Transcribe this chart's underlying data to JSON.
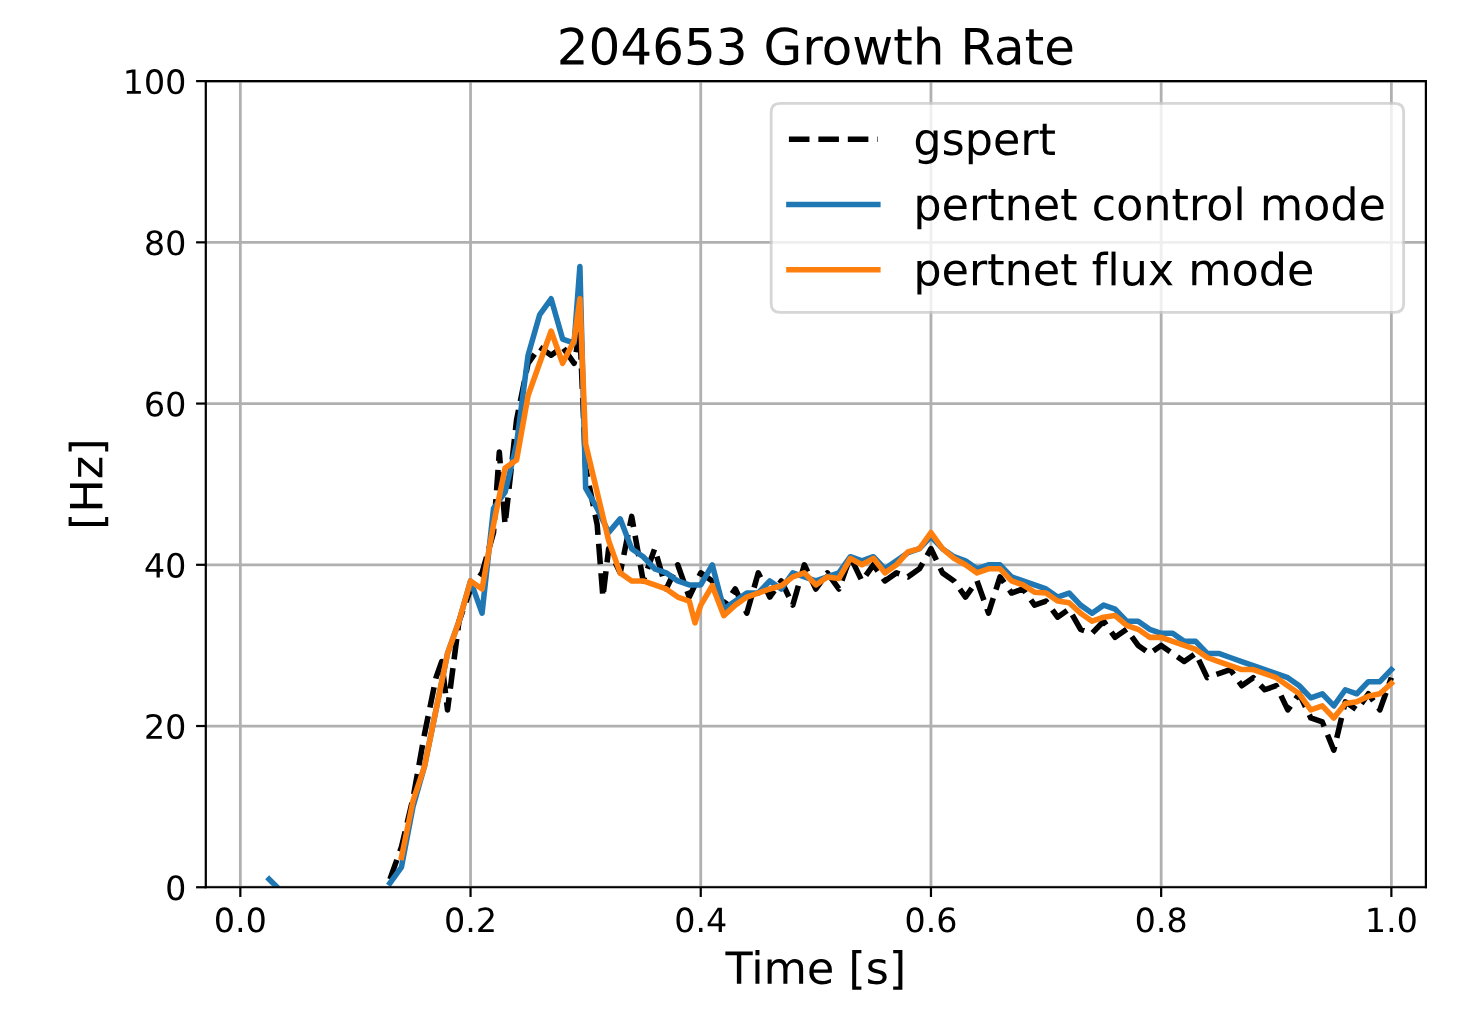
{
  "chart_data": {
    "type": "line",
    "title": "204653 Growth Rate",
    "xlabel": "Time [s]",
    "ylabel": "[Hz]",
    "xlim": [
      -0.03,
      1.03
    ],
    "ylim": [
      0,
      100
    ],
    "xticks": [
      {
        "value": 0,
        "label": "0.0"
      },
      0.2,
      0.4,
      0.6,
      0.8,
      {
        "value": 1,
        "label": "1.0"
      }
    ],
    "yticks": [
      0,
      20,
      40,
      60,
      80,
      100
    ],
    "grid": true,
    "legend": "top right",
    "series": [
      {
        "name": "gspert",
        "color": "#000000",
        "line_style": "dashed",
        "x": [
          0.13,
          0.14,
          0.15,
          0.16,
          0.17,
          0.175,
          0.18,
          0.19,
          0.2,
          0.21,
          0.22,
          0.225,
          0.23,
          0.24,
          0.25,
          0.26,
          0.27,
          0.28,
          0.29,
          0.295,
          0.3,
          0.31,
          0.315,
          0.32,
          0.33,
          0.34,
          0.35,
          0.36,
          0.37,
          0.38,
          0.39,
          0.4,
          0.41,
          0.42,
          0.43,
          0.44,
          0.45,
          0.46,
          0.47,
          0.48,
          0.49,
          0.5,
          0.51,
          0.52,
          0.53,
          0.54,
          0.55,
          0.56,
          0.57,
          0.58,
          0.59,
          0.6,
          0.61,
          0.62,
          0.63,
          0.64,
          0.65,
          0.66,
          0.67,
          0.68,
          0.69,
          0.7,
          0.71,
          0.72,
          0.73,
          0.74,
          0.75,
          0.76,
          0.77,
          0.78,
          0.79,
          0.8,
          0.81,
          0.82,
          0.83,
          0.84,
          0.85,
          0.86,
          0.87,
          0.88,
          0.89,
          0.9,
          0.91,
          0.92,
          0.93,
          0.94,
          0.95,
          0.96,
          0.97,
          0.98,
          0.99,
          1.0
        ],
        "values": [
          1,
          5,
          11,
          19,
          26,
          28,
          22,
          33,
          37,
          39,
          44,
          54,
          45,
          58,
          65,
          67,
          66,
          67,
          65,
          69,
          52,
          45,
          36,
          42,
          39,
          46,
          38,
          42,
          37,
          40,
          36,
          39,
          38,
          35,
          37,
          34,
          39,
          36,
          38,
          35,
          40,
          37,
          39,
          37,
          41,
          38,
          40,
          38,
          39,
          38.5,
          39.5,
          42,
          39,
          38,
          36,
          38,
          34,
          38.5,
          36.5,
          37,
          35,
          35.5,
          33.5,
          34.5,
          32,
          31.5,
          33,
          31,
          32,
          30,
          29,
          30,
          29,
          28,
          29,
          26,
          26.5,
          27,
          25,
          26,
          24.5,
          25,
          22,
          24,
          21,
          20.5,
          17,
          23,
          22,
          24,
          22,
          26
        ]
      },
      {
        "name": "pertnet control mode",
        "color": "#1f77b4",
        "line_style": "solid",
        "x": [
          0.025,
          0.032,
          0.05,
          0.13,
          0.14,
          0.15,
          0.16,
          0.17,
          0.18,
          0.19,
          0.2,
          0.21,
          0.22,
          0.23,
          0.24,
          0.25,
          0.26,
          0.27,
          0.28,
          0.29,
          0.295,
          0.3,
          0.31,
          0.32,
          0.33,
          0.34,
          0.35,
          0.36,
          0.37,
          0.38,
          0.39,
          0.4,
          0.41,
          0.42,
          0.43,
          0.44,
          0.45,
          0.46,
          0.47,
          0.48,
          0.49,
          0.5,
          0.51,
          0.52,
          0.53,
          0.54,
          0.55,
          0.56,
          0.57,
          0.58,
          0.59,
          0.6,
          0.61,
          0.62,
          0.63,
          0.64,
          0.65,
          0.66,
          0.67,
          0.68,
          0.69,
          0.7,
          0.71,
          0.72,
          0.73,
          0.74,
          0.75,
          0.76,
          0.77,
          0.78,
          0.79,
          0.8,
          0.81,
          0.82,
          0.83,
          0.84,
          0.85,
          0.86,
          0.87,
          0.88,
          0.89,
          0.9,
          0.91,
          0.92,
          0.93,
          0.94,
          0.95,
          0.96,
          0.97,
          0.98,
          0.99,
          1.0
        ],
        "values": [
          1,
          0,
          null,
          0.5,
          2.5,
          10,
          15,
          22,
          29,
          33,
          38,
          34,
          47,
          49,
          55,
          66,
          71,
          73,
          68,
          67.5,
          77,
          49.5,
          47,
          44,
          45.7,
          42,
          41,
          39.5,
          39,
          38,
          37.5,
          37.5,
          40,
          34.5,
          35.5,
          36.5,
          36.5,
          38,
          37,
          39,
          38.5,
          38,
          38.5,
          39,
          41,
          40.5,
          41,
          39.5,
          40.5,
          41.5,
          42,
          43.5,
          42,
          41,
          40.5,
          39.5,
          40,
          40,
          38.5,
          38,
          37.5,
          37,
          36,
          36.5,
          35,
          34,
          35,
          34.5,
          33,
          33,
          32,
          31.5,
          31.5,
          30.5,
          30.5,
          29,
          29,
          28.5,
          28,
          27.5,
          27,
          26.5,
          26,
          25,
          23.5,
          24,
          22.5,
          24.5,
          24,
          25.5,
          25.5,
          27
        ]
      },
      {
        "name": "pertnet flux mode",
        "color": "#ff7f0e",
        "line_style": "solid",
        "x": [
          0.14,
          0.15,
          0.16,
          0.17,
          0.18,
          0.19,
          0.2,
          0.21,
          0.22,
          0.23,
          0.24,
          0.25,
          0.26,
          0.27,
          0.28,
          0.29,
          0.295,
          0.3,
          0.31,
          0.32,
          0.33,
          0.34,
          0.35,
          0.36,
          0.37,
          0.38,
          0.39,
          0.395,
          0.4,
          0.41,
          0.42,
          0.43,
          0.44,
          0.45,
          0.46,
          0.47,
          0.48,
          0.49,
          0.5,
          0.51,
          0.52,
          0.53,
          0.54,
          0.55,
          0.56,
          0.57,
          0.58,
          0.59,
          0.6,
          0.61,
          0.62,
          0.63,
          0.64,
          0.65,
          0.66,
          0.67,
          0.68,
          0.69,
          0.7,
          0.71,
          0.72,
          0.73,
          0.74,
          0.75,
          0.76,
          0.77,
          0.78,
          0.79,
          0.8,
          0.81,
          0.82,
          0.83,
          0.84,
          0.85,
          0.86,
          0.87,
          0.88,
          0.89,
          0.9,
          0.91,
          0.92,
          0.93,
          0.94,
          0.95,
          0.96,
          0.97,
          0.98,
          0.99,
          1.0
        ],
        "values": [
          3.7,
          10.7,
          15,
          22,
          29,
          33,
          38,
          37,
          45,
          52,
          53,
          61,
          65,
          69,
          65,
          67.8,
          73,
          55,
          49,
          43,
          39,
          38,
          38,
          37.5,
          37,
          36,
          35.5,
          32.8,
          35,
          37.4,
          33.7,
          35,
          36,
          36.5,
          37,
          37.4,
          38.5,
          39,
          37.5,
          38.5,
          38.3,
          40.8,
          40,
          40.8,
          39,
          40,
          41.6,
          42,
          44,
          42,
          40.8,
          40,
          39,
          39.5,
          39.5,
          38,
          37.5,
          36.6,
          36.5,
          35.5,
          35.3,
          34,
          33,
          33.5,
          33.7,
          32.5,
          32,
          31,
          31,
          30.5,
          30,
          29.5,
          28.5,
          28,
          27.5,
          27,
          27,
          26.5,
          26,
          25,
          24,
          22,
          22.5,
          21,
          22.8,
          23,
          23.7,
          24,
          25.3
        ]
      }
    ]
  }
}
